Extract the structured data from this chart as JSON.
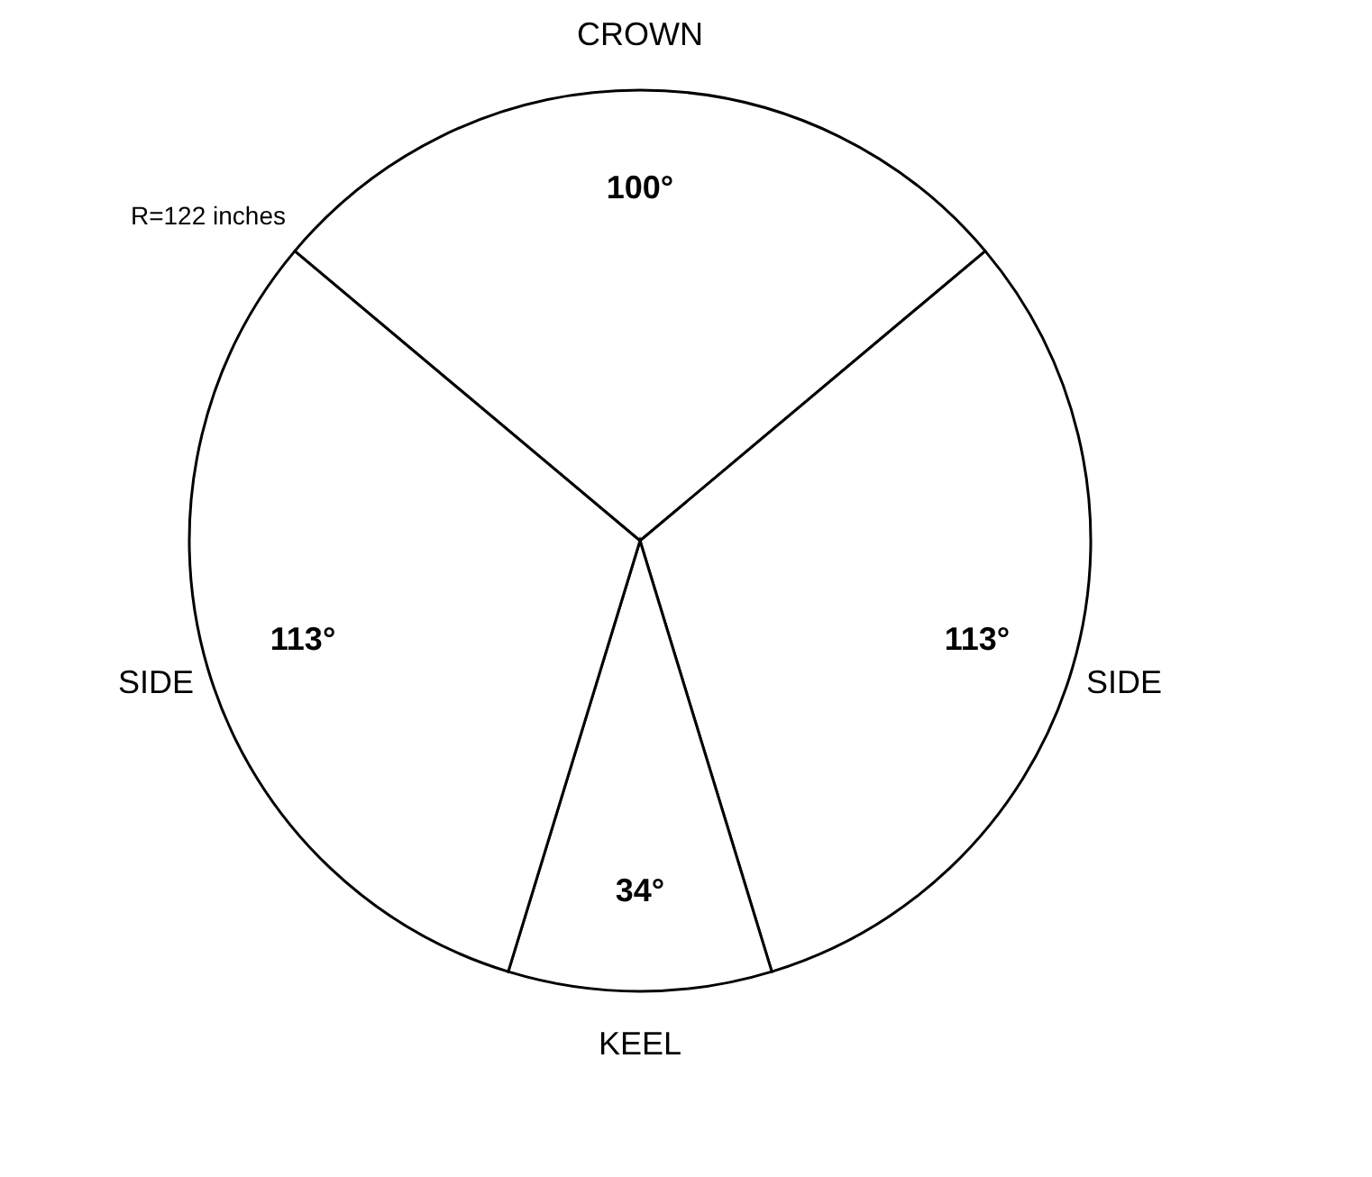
{
  "chart_data": {
    "type": "pie",
    "categories": [
      "CROWN",
      "SIDE",
      "KEEL",
      "SIDE"
    ],
    "values": [
      100,
      113,
      34,
      113
    ],
    "colors": [
      "#ffffff",
      "#ffffff",
      "#ffffff",
      "#ffffff"
    ],
    "value_labels": [
      "100°",
      "113°",
      "34°",
      "113°"
    ],
    "annotations": [
      "R=122 inches"
    ],
    "legend": false
  }
}
